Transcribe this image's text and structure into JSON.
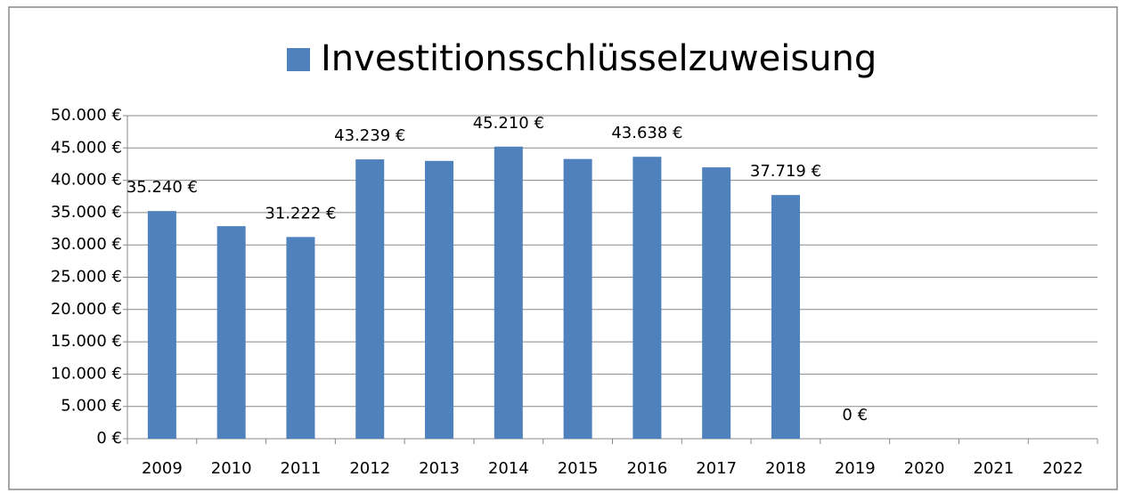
{
  "chart_data": {
    "type": "bar",
    "categories": [
      "2009",
      "2010",
      "2011",
      "2012",
      "2013",
      "2014",
      "2015",
      "2016",
      "2017",
      "2018",
      "2019",
      "2020",
      "2021",
      "2022"
    ],
    "series": [
      {
        "name": "Investitionsschlüsselzuweisung",
        "color": "#4f81bd",
        "values": [
          35240,
          32900,
          31222,
          43239,
          43000,
          45210,
          43300,
          43638,
          42000,
          37719,
          0,
          null,
          null,
          null
        ],
        "value_labels": [
          "35.240 €",
          null,
          "31.222 €",
          "43.239 €",
          null,
          "45.210 €",
          null,
          "43.638 €",
          null,
          "37.719 €",
          "0 €",
          null,
          null,
          null
        ]
      }
    ],
    "ylim": [
      0,
      50000
    ],
    "yticks": [
      {
        "value": 0,
        "label": "0 €"
      },
      {
        "value": 5000,
        "label": "5.000 €"
      },
      {
        "value": 10000,
        "label": "10.000 €"
      },
      {
        "value": 15000,
        "label": "15.000 €"
      },
      {
        "value": 20000,
        "label": "20.000 €"
      },
      {
        "value": 25000,
        "label": "25.000 €"
      },
      {
        "value": 30000,
        "label": "30.000 €"
      },
      {
        "value": 35000,
        "label": "35.000 €"
      },
      {
        "value": 40000,
        "label": "40.000 €"
      },
      {
        "value": 45000,
        "label": "45.000 €"
      },
      {
        "value": 50000,
        "label": "50.000 €"
      }
    ],
    "grid": true,
    "legend": "top"
  }
}
